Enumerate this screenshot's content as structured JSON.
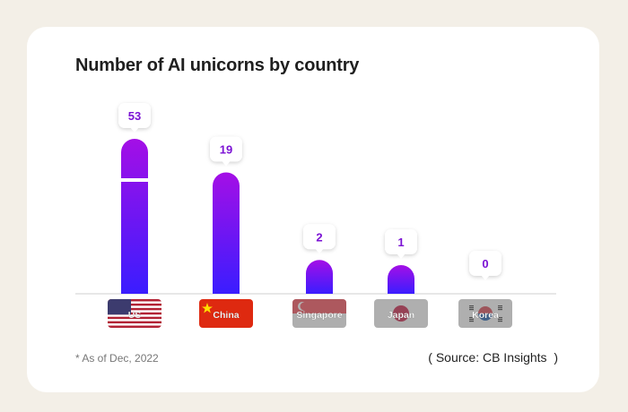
{
  "title": "Number of AI unicorns by country",
  "footnote": "* As of Dec, 2022",
  "source": "( Source: CB Insights  )",
  "colors": {
    "bar_top": "#a40fe6",
    "bar_bottom": "#3a1dff",
    "value_text": "#7b12d4",
    "axis": "#cfcfcf"
  },
  "chart_data": {
    "type": "bar",
    "title": "Number of AI unicorns by country",
    "categories": [
      "US",
      "China",
      "Singapore",
      "Japan",
      "Korea"
    ],
    "values": [
      53,
      19,
      2,
      1,
      0
    ],
    "flag_icons": [
      "us-flag-icon",
      "china-flag-icon",
      "singapore-flag-icon",
      "japan-flag-icon",
      "korea-flag-icon"
    ],
    "xlabel": "",
    "ylabel": "",
    "axis_break": true,
    "grid": false,
    "legend": "none"
  }
}
